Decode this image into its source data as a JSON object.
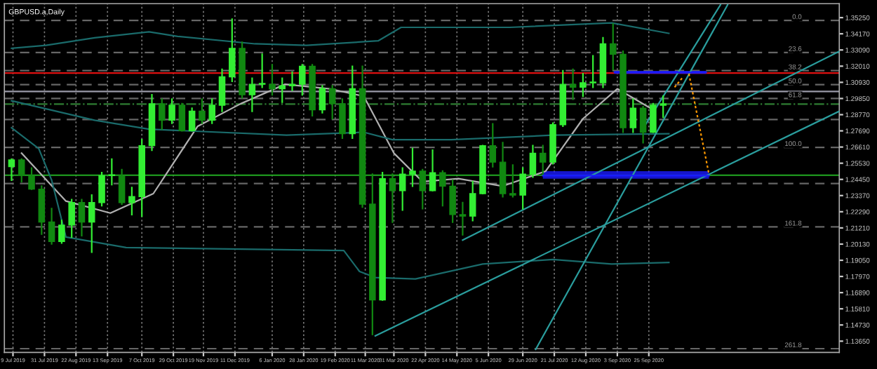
{
  "chart_data": {
    "type": "candlestick",
    "title": "GBPUSD.a,Daily",
    "x": [
      "2019-07-08",
      "2019-07-15",
      "2019-07-22",
      "2019-07-29",
      "2019-08-05",
      "2019-08-12",
      "2019-08-19",
      "2019-08-26",
      "2019-09-02",
      "2019-09-09",
      "2019-09-16",
      "2019-09-23",
      "2019-09-30",
      "2019-10-07",
      "2019-10-14",
      "2019-10-21",
      "2019-10-28",
      "2019-11-04",
      "2019-11-11",
      "2019-11-18",
      "2019-11-25",
      "2019-12-02",
      "2019-12-09",
      "2019-12-16",
      "2019-12-23",
      "2019-12-30",
      "2020-01-06",
      "2020-01-13",
      "2020-01-20",
      "2020-01-27",
      "2020-02-03",
      "2020-02-10",
      "2020-02-17",
      "2020-02-24",
      "2020-03-02",
      "2020-03-09",
      "2020-03-16",
      "2020-03-23",
      "2020-03-30",
      "2020-04-06",
      "2020-04-13",
      "2020-04-20",
      "2020-04-27",
      "2020-05-04",
      "2020-05-11",
      "2020-05-18",
      "2020-05-25",
      "2020-06-01",
      "2020-06-08",
      "2020-06-15",
      "2020-06-22",
      "2020-06-29",
      "2020-07-06",
      "2020-07-13",
      "2020-07-20",
      "2020-07-27",
      "2020-08-03",
      "2020-08-10",
      "2020-08-17",
      "2020-08-24",
      "2020-08-31",
      "2020-09-07",
      "2020-09-14",
      "2020-09-21",
      "2020-09-28",
      "2020-10-05"
    ],
    "ohlc": [
      [
        1.253,
        1.258,
        1.244,
        1.2575
      ],
      [
        1.2575,
        1.258,
        1.243,
        1.247
      ],
      [
        1.247,
        1.252,
        1.238,
        1.238
      ],
      [
        1.238,
        1.24,
        1.208,
        1.216
      ],
      [
        1.216,
        1.225,
        1.2015,
        1.203
      ],
      [
        1.203,
        1.217,
        1.202,
        1.214
      ],
      [
        1.214,
        1.231,
        1.206,
        1.229
      ],
      [
        1.229,
        1.231,
        1.207,
        1.216
      ],
      [
        1.216,
        1.234,
        1.196,
        1.229
      ],
      [
        1.229,
        1.249,
        1.227,
        1.247
      ],
      [
        1.247,
        1.258,
        1.241,
        1.2475
      ],
      [
        1.247,
        1.251,
        1.228,
        1.229
      ],
      [
        1.229,
        1.239,
        1.221,
        1.233
      ],
      [
        1.233,
        1.271,
        1.22,
        1.267
      ],
      [
        1.267,
        1.301,
        1.264,
        1.295
      ],
      [
        1.295,
        1.298,
        1.278,
        1.284
      ],
      [
        1.284,
        1.298,
        1.282,
        1.294
      ],
      [
        1.294,
        1.295,
        1.277,
        1.277
      ],
      [
        1.277,
        1.292,
        1.277,
        1.29
      ],
      [
        1.29,
        1.298,
        1.282,
        1.284
      ],
      [
        1.284,
        1.298,
        1.282,
        1.294
      ],
      [
        1.294,
        1.318,
        1.29,
        1.313
      ],
      [
        1.313,
        1.3515,
        1.31,
        1.332
      ],
      [
        1.332,
        1.336,
        1.299,
        1.301
      ],
      [
        1.301,
        1.312,
        1.29,
        1.308
      ],
      [
        1.308,
        1.328,
        1.306,
        1.3085
      ],
      [
        1.308,
        1.321,
        1.301,
        1.305
      ],
      [
        1.305,
        1.312,
        1.296,
        1.307
      ],
      [
        1.307,
        1.316,
        1.304,
        1.308
      ],
      [
        1.308,
        1.321,
        1.301,
        1.32
      ],
      [
        1.32,
        1.321,
        1.287,
        1.291
      ],
      [
        1.291,
        1.307,
        1.289,
        1.305
      ],
      [
        1.305,
        1.307,
        1.285,
        1.295
      ],
      [
        1.295,
        1.298,
        1.272,
        1.275
      ],
      [
        1.275,
        1.32,
        1.272,
        1.305
      ],
      [
        1.305,
        1.32,
        1.226,
        1.228
      ],
      [
        1.228,
        1.248,
        1.141,
        1.164
      ],
      [
        1.164,
        1.249,
        1.164,
        1.245
      ],
      [
        1.245,
        1.248,
        1.216,
        1.237
      ],
      [
        1.237,
        1.252,
        1.224,
        1.248
      ],
      [
        1.248,
        1.265,
        1.24,
        1.25
      ],
      [
        1.25,
        1.251,
        1.225,
        1.237
      ],
      [
        1.237,
        1.264,
        1.237,
        1.249
      ],
      [
        1.249,
        1.25,
        1.227,
        1.24
      ],
      [
        1.24,
        1.244,
        1.216,
        1.221
      ],
      [
        1.221,
        1.229,
        1.2075,
        1.22
      ],
      [
        1.22,
        1.243,
        1.217,
        1.235
      ],
      [
        1.235,
        1.267,
        1.235,
        1.267
      ],
      [
        1.267,
        1.2815,
        1.253,
        1.256
      ],
      [
        1.256,
        1.269,
        1.233,
        1.235
      ],
      [
        1.235,
        1.254,
        1.233,
        1.234
      ],
      [
        1.234,
        1.252,
        1.225,
        1.248
      ],
      [
        1.248,
        1.267,
        1.246,
        1.262
      ],
      [
        1.262,
        1.267,
        1.248,
        1.256
      ],
      [
        1.256,
        1.282,
        1.255,
        1.281
      ],
      [
        1.281,
        1.317,
        1.28,
        1.308
      ],
      [
        1.308,
        1.318,
        1.298,
        1.306
      ],
      [
        1.306,
        1.315,
        1.3,
        1.309
      ],
      [
        1.309,
        1.327,
        1.306,
        1.3095
      ],
      [
        1.309,
        1.339,
        1.306,
        1.335
      ],
      [
        1.335,
        1.3482,
        1.318,
        1.328
      ],
      [
        1.328,
        1.33,
        1.276,
        1.279
      ],
      [
        1.279,
        1.298,
        1.276,
        1.292
      ],
      [
        1.292,
        1.293,
        1.269,
        1.276
      ],
      [
        1.276,
        1.295,
        1.276,
        1.294
      ],
      [
        1.294,
        1.3,
        1.286,
        1.295
      ]
    ],
    "colors": [
      "#33ee33",
      "#118811",
      "#118811",
      "#118811",
      "#118811",
      "#33ee33",
      "#33ee33",
      "#118811",
      "#33ee33",
      "#33ee33",
      "#33ee33",
      "#118811",
      "#33ee33",
      "#33ee33",
      "#33ee33",
      "#118811",
      "#33ee33",
      "#118811",
      "#33ee33",
      "#118811",
      "#33ee33",
      "#33ee33",
      "#33ee33",
      "#118811",
      "#33ee33",
      "#33ee33",
      "#118811",
      "#33ee33",
      "#33ee33",
      "#33ee33",
      "#118811",
      "#33ee33",
      "#118811",
      "#118811",
      "#33ee33",
      "#118811",
      "#118811",
      "#33ee33",
      "#118811",
      "#33ee33",
      "#33ee33",
      "#118811",
      "#33ee33",
      "#118811",
      "#118811",
      "#118811",
      "#33ee33",
      "#33ee33",
      "#118811",
      "#118811",
      "#118811",
      "#33ee33",
      "#33ee33",
      "#118811",
      "#33ee33",
      "#33ee33",
      "#118811",
      "#33ee33",
      "#33ee33",
      "#33ee33",
      "#118811",
      "#118811",
      "#33ee33",
      "#118811",
      "#33ee33",
      "#33ee33"
    ],
    "series": [
      {
        "type": "line",
        "color": "#b0b0b0",
        "x": [
          "2019-07-15",
          "2019-08-15",
          "2019-09-15",
          "2019-10-15",
          "2019-11-15",
          "2019-12-15",
          "2020-01-15",
          "2020-02-15",
          "2020-03-10",
          "2020-03-31",
          "2020-04-20",
          "2020-05-15",
          "2020-06-15",
          "2020-07-15",
          "2020-08-10",
          "2020-09-03",
          "2020-09-28"
        ],
        "values": [
          1.262,
          1.23,
          1.222,
          1.235,
          1.28,
          1.295,
          1.308,
          1.305,
          1.3,
          1.262,
          1.243,
          1.245,
          1.24,
          1.25,
          1.285,
          1.305,
          1.291
        ]
      },
      {
        "type": "line",
        "color": "#1a6b6b",
        "x": [
          "2019-07-08",
          "2019-08-01",
          "2019-09-04",
          "2019-10-12",
          "2019-11-01",
          "2019-12-25",
          "2020-01-30",
          "2020-03-20",
          "2020-04-05",
          "2020-06-20",
          "2020-08-30",
          "2020-10-09"
        ],
        "values": [
          1.332,
          1.334,
          1.339,
          1.343,
          1.34,
          1.335,
          1.334,
          1.337,
          1.346,
          1.346,
          1.349,
          1.342
        ]
      },
      {
        "type": "line",
        "color": "#1a6b6b",
        "x": [
          "2019-07-08",
          "2019-09-04",
          "2019-10-12",
          "2020-01-16",
          "2020-03-10",
          "2020-03-30",
          "2020-05-10",
          "2020-07-20",
          "2020-10-09"
        ],
        "values": [
          1.297,
          1.284,
          1.278,
          1.274,
          1.276,
          1.271,
          1.271,
          1.274,
          1.275
        ]
      },
      {
        "type": "line",
        "color": "#1a6b6b",
        "x": [
          "2019-07-08",
          "2019-07-27",
          "2019-08-05",
          "2019-08-15",
          "2019-09-26",
          "2020-02-25",
          "2020-03-07",
          "2020-03-18",
          "2020-04-15",
          "2020-06-01",
          "2020-07-20",
          "2020-08-30",
          "2020-10-09"
        ],
        "values": [
          1.279,
          1.265,
          1.244,
          1.206,
          1.199,
          1.197,
          1.183,
          1.179,
          1.178,
          1.188,
          1.191,
          1.188,
          1.189
        ]
      },
      {
        "type": "line",
        "color": "#2a9d9d",
        "x": [
          "2020-05-18",
          "2021-02-05"
        ],
        "values": [
          1.204,
          1.33
        ]
      },
      {
        "type": "line",
        "color": "#2a9d9d",
        "x": [
          "2020-03-18",
          "2021-02-05"
        ],
        "values": [
          1.14,
          1.29
        ]
      },
      {
        "type": "line",
        "color": "#2a9d9d",
        "x": [
          "2020-07-08",
          "2020-11-19"
        ],
        "values": [
          1.131,
          1.361
        ]
      },
      {
        "type": "line",
        "color": "#2a9d9d",
        "x": [
          "2020-09-22",
          "2020-11-14"
        ],
        "values": [
          1.28,
          1.361
        ]
      },
      {
        "type": "line",
        "color": "#1a1aff",
        "x": [
          "2020-09-01",
          "2020-11-04"
        ],
        "values": [
          1.316,
          1.316
        ],
        "lower": [
          1.315,
          1.315
        ],
        "upper": [
          1.317,
          1.317
        ]
      },
      {
        "type": "line",
        "color": "#1a1aff",
        "x": [
          "2020-07-13",
          "2020-11-06"
        ],
        "values": [
          1.247,
          1.247
        ],
        "lower": [
          1.245,
          1.245
        ],
        "upper": [
          1.25,
          1.25
        ]
      },
      {
        "type": "line",
        "color": "#ff9900",
        "line_style": "dotted",
        "x": [
          "2020-10-13",
          "2020-10-19"
        ],
        "values": [
          1.306,
          1.313
        ]
      },
      {
        "type": "line",
        "color": "#ff9900",
        "line_style": "dotted",
        "x": [
          "2020-10-23",
          "2020-11-06"
        ],
        "values": [
          1.315,
          1.248
        ]
      }
    ],
    "ref_lines": [
      {
        "axis": "y",
        "value": 1.3155,
        "color": "#dd1111",
        "line_style": "solid"
      },
      {
        "axis": "y",
        "value": 1.3032,
        "color": "#9a9aa8",
        "line_style": "solid"
      },
      {
        "axis": "y",
        "value": 1.2473,
        "color": "#22aa22",
        "line_style": "solid"
      },
      {
        "axis": "y",
        "value": 1.2948,
        "color": "#2e7d32",
        "line_style": "dashdot"
      },
      {
        "axis": "y",
        "value": 1.3506,
        "color": "#666666",
        "line_style": "dashed"
      },
      {
        "axis": "y",
        "value": 1.3292,
        "color": "#666666",
        "line_style": "dashed"
      },
      {
        "axis": "y",
        "value": 1.3171,
        "color": "#666666",
        "line_style": "dashed"
      },
      {
        "axis": "y",
        "value": 1.3078,
        "color": "#666666",
        "line_style": "dashed"
      },
      {
        "axis": "y",
        "value": 1.2985,
        "color": "#666666",
        "line_style": "dashed"
      },
      {
        "axis": "y",
        "value": 1.2845,
        "color": "#666666",
        "line_style": "dashed"
      },
      {
        "axis": "y",
        "value": 1.2659,
        "color": "#666666",
        "line_style": "dashed"
      },
      {
        "axis": "y",
        "value": 1.2417,
        "color": "#666666",
        "line_style": "dashed"
      },
      {
        "axis": "y",
        "value": 1.2128,
        "color": "#666666",
        "line_style": "dashed"
      },
      {
        "axis": "y",
        "value": 1.1315,
        "color": "#666666",
        "line_style": "dashed"
      }
    ],
    "annotations": [
      {
        "text": "0.0",
        "y": 1.3506
      },
      {
        "text": "23.6",
        "y": 1.3292
      },
      {
        "text": "38.2",
        "y": 1.3171
      },
      {
        "text": "50.0",
        "y": 1.3078
      },
      {
        "text": "61.8",
        "y": 1.2985
      },
      {
        "text": "100.0",
        "y": 1.2659
      },
      {
        "text": "161.8",
        "y": 1.2128
      },
      {
        "text": "261.8",
        "y": 1.1315
      }
    ],
    "xlim": [
      "2019-07-03",
      "2021-02-05"
    ],
    "xticks": [
      {
        "value": "2019-07-09",
        "label": "9 Jul 2019"
      },
      {
        "value": "2019-07-31",
        "label": "31 Jul 2019"
      },
      {
        "value": "2019-08-22",
        "label": "22 Aug 2019"
      },
      {
        "value": "2019-09-13",
        "label": "13 Sep 2019"
      },
      {
        "value": "2019-10-07",
        "label": "7 Oct 2019"
      },
      {
        "value": "2019-10-29",
        "label": "29 Oct 2019"
      },
      {
        "value": "2019-11-19",
        "label": "19 Nov 2019"
      },
      {
        "value": "2019-12-11",
        "label": "11 Dec 2019"
      },
      {
        "value": "2020-01-06",
        "label": "6 Jan 2020"
      },
      {
        "value": "2020-01-28",
        "label": "28 Jan 2020"
      },
      {
        "value": "2020-02-19",
        "label": "19 Feb 2020"
      },
      {
        "value": "2020-03-11",
        "label": "11 Mar 2020"
      },
      {
        "value": "2020-03-31",
        "label": "31 Mar 2020"
      },
      {
        "value": "2020-04-22",
        "label": "22 Apr 2020"
      },
      {
        "value": "2020-05-14",
        "label": "14 May 2020"
      },
      {
        "value": "2020-06-05",
        "label": "5 Jun 2020"
      },
      {
        "value": "2020-06-29",
        "label": "29 Jun 2020"
      },
      {
        "value": "2020-07-21",
        "label": "21 Jul 2020"
      },
      {
        "value": "2020-08-12",
        "label": "12 Aug 2020"
      },
      {
        "value": "2020-09-03",
        "label": "3 Sep 2020"
      },
      {
        "value": "2020-09-25",
        "label": "25 Sep 2020"
      }
    ],
    "ylim": [
      1.129,
      1.3618
    ],
    "yticks": [
      {
        "value": 1.1365,
        "label": "1.13650"
      },
      {
        "value": 1.1473,
        "label": "1.14730"
      },
      {
        "value": 1.1581,
        "label": "1.15810"
      },
      {
        "value": 1.1689,
        "label": "1.16890"
      },
      {
        "value": 1.1797,
        "label": "1.17970"
      },
      {
        "value": 1.1905,
        "label": "1.19050"
      },
      {
        "value": 1.2013,
        "label": "1.20130"
      },
      {
        "value": 1.2121,
        "label": "1.21210"
      },
      {
        "value": 1.2229,
        "label": "1.22290"
      },
      {
        "value": 1.2337,
        "label": "1.23370"
      },
      {
        "value": 1.2445,
        "label": "1.24450"
      },
      {
        "value": 1.2553,
        "label": "1.25530"
      },
      {
        "value": 1.2661,
        "label": "1.26610"
      },
      {
        "value": 1.2769,
        "label": "1.27690"
      },
      {
        "value": 1.2877,
        "label": "1.28770"
      },
      {
        "value": 1.2985,
        "label": "1.29850"
      },
      {
        "value": 1.3093,
        "label": "1.30930"
      },
      {
        "value": 1.3201,
        "label": "1.32010"
      },
      {
        "value": 1.3309,
        "label": "1.33090"
      },
      {
        "value": 1.3417,
        "label": "1.34170"
      },
      {
        "value": 1.3525,
        "label": "1.35250"
      }
    ],
    "grid": "x"
  }
}
